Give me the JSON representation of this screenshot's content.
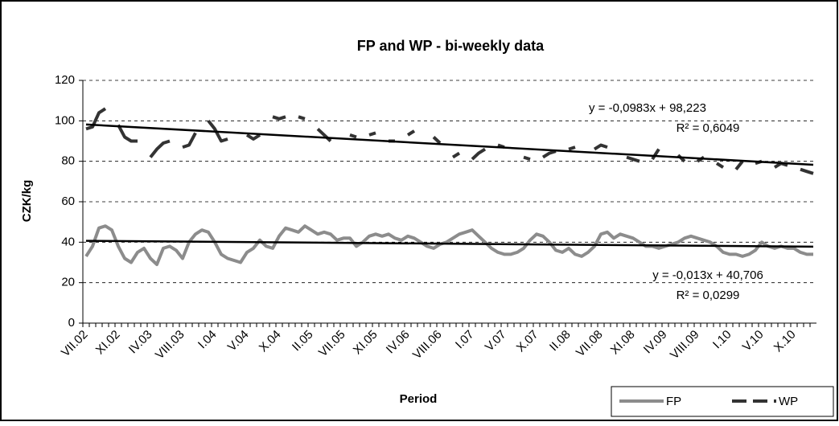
{
  "chart_data": {
    "type": "line",
    "title": "FP and WP - bi-weekly data",
    "y_label": "CZK/kg",
    "x_label": "Period",
    "categories": [
      "VII.02",
      null,
      null,
      null,
      null,
      "XI.02",
      null,
      null,
      null,
      null,
      "IV.03",
      null,
      null,
      null,
      null,
      "VIII.03",
      null,
      null,
      null,
      null,
      "I.04",
      null,
      null,
      null,
      null,
      "V.04",
      null,
      null,
      null,
      null,
      "X.04",
      null,
      null,
      null,
      null,
      "II.05",
      null,
      null,
      null,
      null,
      "VII.05",
      null,
      null,
      null,
      null,
      "XI.05",
      null,
      null,
      null,
      null,
      "IV.06",
      null,
      null,
      null,
      null,
      "VIII.06",
      null,
      null,
      null,
      null,
      "I.07",
      null,
      null,
      null,
      null,
      "V.07",
      null,
      null,
      null,
      null,
      "X.07",
      null,
      null,
      null,
      null,
      "II.08",
      null,
      null,
      null,
      null,
      "VII.08",
      null,
      null,
      null,
      null,
      "XI.08",
      null,
      null,
      null,
      null,
      "IV.09",
      null,
      null,
      null,
      null,
      "VIII.09",
      null,
      null,
      null,
      null,
      "I.10",
      null,
      null,
      null,
      null,
      "V.10",
      null,
      null,
      null,
      null,
      "X.10",
      null,
      null,
      null
    ],
    "series": [
      {
        "name": "FP",
        "color": "#8c8c8c",
        "values": [
          33,
          38,
          47,
          48,
          46,
          38,
          32,
          30,
          35,
          37,
          32,
          29,
          37,
          38,
          36,
          32,
          40,
          44,
          46,
          45,
          40,
          34,
          32,
          31,
          30,
          35,
          37,
          41,
          38,
          37,
          43,
          47,
          46,
          45,
          48,
          46,
          44,
          45,
          44,
          41,
          42,
          42,
          38,
          40,
          43,
          44,
          43,
          44,
          42,
          41,
          43,
          42,
          40,
          38,
          37,
          39,
          40,
          42,
          44,
          45,
          46,
          43,
          40,
          37,
          35,
          34,
          34,
          35,
          37,
          41,
          44,
          43,
          40,
          36,
          35,
          37,
          34,
          33,
          35,
          38,
          44,
          45,
          42,
          44,
          43,
          42,
          40,
          38,
          38,
          37,
          38,
          39,
          40,
          42,
          43,
          42,
          41,
          40,
          38,
          35,
          34,
          34,
          33,
          34,
          36,
          40,
          38,
          37,
          38,
          37,
          37,
          35,
          34,
          34
        ]
      },
      {
        "name": "WP",
        "color": "#333333",
        "values": [
          96,
          97,
          104,
          106,
          null,
          98,
          92,
          90,
          90,
          null,
          82,
          86,
          89,
          90,
          null,
          87,
          88,
          94,
          null,
          100,
          96,
          90,
          91,
          null,
          null,
          93,
          91,
          93,
          null,
          102,
          101,
          102,
          null,
          102,
          101,
          null,
          96,
          93,
          90,
          null,
          null,
          93,
          92,
          null,
          93,
          94,
          null,
          90,
          90,
          null,
          93,
          95,
          null,
          null,
          92,
          89,
          null,
          82,
          84,
          null,
          81,
          84,
          86,
          null,
          88,
          87,
          null,
          null,
          82,
          81,
          null,
          82,
          84,
          85,
          null,
          86,
          87,
          null,
          null,
          86,
          88,
          87,
          null,
          null,
          82,
          81,
          80,
          null,
          81,
          86,
          null,
          null,
          83,
          80,
          null,
          80,
          82,
          null,
          79,
          77,
          null,
          76,
          80,
          null,
          79,
          80,
          null,
          77,
          79,
          78,
          null,
          76,
          75,
          74
        ]
      }
    ],
    "trendlines": [
      {
        "values": [
          98.2,
          78.3
        ],
        "equation": "y = -0,0983x + 98,223",
        "r2": "R² = 0,6049"
      },
      {
        "values": [
          40.7,
          37.8
        ],
        "equation": "y = -0,013x + 40,706",
        "r2": "R² = 0,0299"
      }
    ],
    "ylim": [
      0,
      120
    ],
    "yticks": [
      0,
      20,
      40,
      60,
      80,
      100,
      120
    ],
    "grid": true
  }
}
